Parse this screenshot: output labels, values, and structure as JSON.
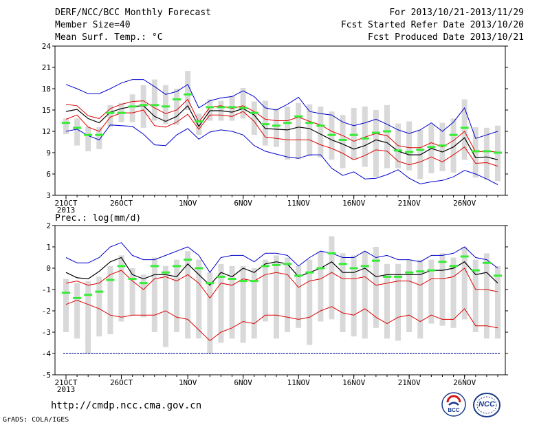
{
  "header": {
    "title": "DERF/NCC/BCC Monthly Forecast",
    "member_size": "Member Size=40",
    "variable": "Mean Surf. Temp.: °C",
    "period": "For 2013/10/21-2013/11/29",
    "fcst_started": "Fcst Started Refer Date 2013/10/20",
    "fcst_produced": "Fcst Produced Date 2013/10/21"
  },
  "footer": {
    "url": "http://cmdp.ncc.cma.gov.cn",
    "grads_credit": "GrADS: COLA/IGES",
    "logo_bcc_text": "BCC",
    "logo_ncc_text": "NCC"
  },
  "colors": {
    "box": "#d9d9d9",
    "mean_marker": "#33ee33",
    "ensemble_mean": "#000000",
    "inner_bounds": "#dd0000",
    "outer_bounds": "#0000cc"
  },
  "chart_data": [
    {
      "type": "line",
      "title": "Mean Surf. Temp.: °C",
      "x_tick_labels": [
        "21OCT",
        "26OCT",
        "1NOV",
        "6NOV",
        "11NOV",
        "16NOV",
        "21NOV",
        "26NOV"
      ],
      "x_tick_index": [
        0,
        5,
        11,
        16,
        21,
        26,
        31,
        36
      ],
      "x_year_label": "2013",
      "ylim": [
        3,
        24
      ],
      "yticks": [
        3,
        6,
        9,
        12,
        15,
        18,
        21,
        24
      ],
      "series": [
        {
          "role": "blue-upper",
          "values": [
            18.6,
            18.0,
            17.3,
            17.3,
            18.0,
            18.8,
            19.3,
            19.3,
            18.3,
            17.2,
            17.6,
            18.6,
            15.3,
            16.3,
            16.7,
            16.9,
            17.7,
            16.9,
            15.3,
            15.0,
            15.8,
            16.8,
            14.8,
            14.5,
            14.3,
            13.3,
            12.8,
            13.2,
            13.7,
            13.0,
            12.2,
            11.7,
            12.2,
            13.2,
            12.0,
            13.3,
            15.3,
            11.0,
            11.5,
            12.0
          ]
        },
        {
          "role": "red-upper",
          "values": [
            15.8,
            15.6,
            14.2,
            13.8,
            15.2,
            15.8,
            16.2,
            16.3,
            15.3,
            14.5,
            15.0,
            16.5,
            13.3,
            15.4,
            15.6,
            15.2,
            15.6,
            14.8,
            13.7,
            13.5,
            13.5,
            14.0,
            13.4,
            12.9,
            12.0,
            11.4,
            10.6,
            11.2,
            11.7,
            11.4,
            10.0,
            9.7,
            9.7,
            10.4,
            9.8,
            10.7,
            12.0,
            9.1,
            9.2,
            9.1
          ]
        },
        {
          "role": "black-mean",
          "values": [
            14.8,
            15.1,
            13.8,
            13.2,
            14.7,
            15.2,
            15.5,
            15.6,
            14.1,
            13.4,
            14.1,
            15.6,
            12.7,
            14.9,
            14.9,
            14.7,
            15.2,
            14.3,
            12.4,
            12.3,
            12.2,
            12.6,
            12.4,
            11.6,
            10.8,
            10.2,
            9.5,
            10.0,
            10.8,
            10.4,
            9.2,
            8.7,
            8.7,
            9.6,
            9.1,
            9.8,
            11.1,
            8.3,
            8.4,
            8.0
          ]
        },
        {
          "role": "red-lower",
          "values": [
            13.7,
            14.3,
            12.6,
            12.0,
            14.0,
            14.6,
            14.6,
            15.0,
            12.8,
            12.6,
            13.3,
            14.4,
            12.3,
            14.3,
            14.3,
            14.1,
            14.8,
            13.4,
            11.2,
            11.0,
            10.8,
            10.8,
            10.8,
            10.1,
            9.6,
            8.9,
            8.0,
            8.6,
            9.4,
            9.2,
            7.8,
            7.3,
            7.7,
            8.4,
            7.7,
            8.7,
            9.8,
            7.5,
            7.6,
            7.1
          ]
        },
        {
          "role": "blue-lower",
          "values": [
            12.0,
            12.3,
            11.4,
            10.8,
            12.9,
            12.8,
            12.7,
            11.6,
            10.1,
            10.0,
            11.5,
            12.4,
            10.9,
            11.9,
            12.2,
            12.0,
            11.5,
            10.0,
            9.2,
            8.8,
            8.4,
            8.2,
            8.7,
            8.7,
            6.8,
            5.8,
            6.3,
            5.3,
            5.4,
            5.9,
            6.6,
            5.4,
            4.6,
            4.9,
            5.1,
            5.6,
            6.5,
            6.0,
            5.3,
            4.5
          ]
        },
        {
          "role": "green-marker",
          "values": [
            13.2,
            12.5,
            11.5,
            11.5,
            14.6,
            14.6,
            15.5,
            15.7,
            15.7,
            15.5,
            16.5,
            17.2,
            13.4,
            15.4,
            15.4,
            15.4,
            15.3,
            14.6,
            13.0,
            12.8,
            13.2,
            14.1,
            13.2,
            12.8,
            11.5,
            10.8,
            11.5,
            11.0,
            11.8,
            12.0,
            9.3,
            9.1,
            9.4,
            9.8,
            10.0,
            11.5,
            12.5,
            9.2,
            9.2,
            9.0
          ]
        },
        {
          "role": "box-top",
          "values": [
            13.8,
            13.8,
            12.6,
            12.6,
            15.7,
            16.0,
            17.2,
            18.5,
            19.3,
            18.5,
            18.0,
            20.5,
            14.5,
            16.5,
            16.3,
            17.0,
            18.1,
            16.2,
            16.3,
            15.2,
            15.5,
            16.0,
            15.8,
            15.5,
            14.8,
            14.3,
            15.3,
            15.5,
            15.0,
            15.7,
            13.1,
            13.4,
            12.2,
            13.0,
            13.2,
            13.8,
            16.5,
            12.6,
            12.5,
            12.8
          ]
        },
        {
          "role": "box-bottom",
          "values": [
            11.6,
            10.0,
            9.2,
            9.5,
            12.6,
            13.3,
            13.3,
            12.5,
            13.5,
            13.0,
            12.9,
            15.0,
            11.5,
            13.5,
            13.5,
            13.5,
            13.8,
            11.5,
            10.0,
            9.8,
            8.0,
            8.1,
            8.5,
            8.3,
            8.0,
            6.8,
            8.0,
            7.0,
            5.6,
            6.8,
            6.8,
            6.5,
            5.3,
            6.1,
            6.4,
            6.2,
            8.0,
            5.5,
            5.2,
            5.0
          ]
        }
      ]
    },
    {
      "type": "line",
      "title": "Prec.: log(mm/d)",
      "x_tick_labels": [
        "21OCT",
        "26OCT",
        "1NOV",
        "6NOV",
        "11NOV",
        "16NOV",
        "21NOV",
        "26NOV"
      ],
      "x_tick_index": [
        0,
        5,
        11,
        16,
        21,
        26,
        31,
        36
      ],
      "x_year_label": "2013",
      "ylim": [
        -5,
        2
      ],
      "yticks": [
        -5,
        -4,
        -3,
        -2,
        -1,
        0,
        1,
        2
      ],
      "series": [
        {
          "role": "blue-upper",
          "values": [
            0.5,
            0.25,
            0.25,
            0.5,
            1.0,
            1.2,
            0.6,
            0.4,
            0.4,
            0.6,
            0.8,
            1.0,
            0.6,
            -0.2,
            0.5,
            0.6,
            0.6,
            0.3,
            0.7,
            0.7,
            0.6,
            0.1,
            0.5,
            0.8,
            0.7,
            0.5,
            0.5,
            0.8,
            0.5,
            0.6,
            0.4,
            0.4,
            0.3,
            0.6,
            0.6,
            0.7,
            1.0,
            0.5,
            0.4,
            0.0
          ]
        },
        {
          "role": "black-mean",
          "values": [
            -0.2,
            -0.45,
            -0.5,
            -0.15,
            0.3,
            0.5,
            -0.3,
            -0.5,
            -0.3,
            -0.3,
            -0.4,
            0.2,
            -0.3,
            -0.8,
            -0.2,
            -0.4,
            0.0,
            -0.2,
            0.2,
            0.3,
            0.2,
            -0.4,
            -0.2,
            0.0,
            0.3,
            -0.2,
            -0.2,
            0.0,
            -0.4,
            -0.3,
            -0.3,
            -0.3,
            -0.3,
            -0.1,
            -0.1,
            0.0,
            0.3,
            -0.3,
            -0.2,
            -0.7
          ]
        },
        {
          "role": "red-upper",
          "values": [
            -0.7,
            -0.6,
            -0.8,
            -0.7,
            -0.3,
            -0.1,
            -0.6,
            -1.0,
            -0.5,
            -0.4,
            -0.6,
            -0.3,
            -0.7,
            -1.4,
            -0.7,
            -0.8,
            -0.5,
            -0.6,
            -0.3,
            -0.2,
            -0.3,
            -0.9,
            -0.6,
            -0.5,
            -0.2,
            -0.5,
            -0.5,
            -0.4,
            -0.8,
            -0.7,
            -0.6,
            -0.6,
            -0.8,
            -0.5,
            -0.5,
            -0.4,
            0.0,
            -1.0,
            -1.0,
            -1.1
          ]
        },
        {
          "role": "red-lower",
          "values": [
            -1.7,
            -1.5,
            -1.7,
            -1.9,
            -2.2,
            -2.3,
            -2.2,
            -2.2,
            -2.2,
            -2.0,
            -2.3,
            -2.4,
            -2.9,
            -3.4,
            -3.0,
            -2.8,
            -2.5,
            -2.6,
            -2.2,
            -2.2,
            -2.3,
            -2.4,
            -2.3,
            -2.0,
            -1.8,
            -2.1,
            -2.2,
            -1.9,
            -2.3,
            -2.6,
            -2.3,
            -2.2,
            -2.5,
            -2.2,
            -2.4,
            -2.4,
            -1.9,
            -2.7,
            -2.7,
            -2.8
          ]
        },
        {
          "role": "green-marker",
          "values": [
            -1.15,
            -1.4,
            -1.25,
            -1.1,
            -0.55,
            0.1,
            -0.5,
            -0.7,
            0.1,
            -0.2,
            0.1,
            0.4,
            0.0,
            -0.7,
            -0.4,
            -0.5,
            -0.6,
            -0.6,
            0.1,
            0.15,
            0.2,
            -0.35,
            -0.2,
            0.0,
            0.7,
            0.2,
            0.0,
            0.1,
            0.35,
            -0.4,
            -0.4,
            -0.2,
            -0.15,
            -0.1,
            0.3,
            0.1,
            0.55,
            -0.1,
            0.25,
            -0.35
          ]
        },
        {
          "role": "box-top",
          "values": [
            -0.5,
            -0.7,
            -0.6,
            -0.4,
            0.1,
            0.6,
            0.0,
            -0.3,
            0.5,
            0.1,
            0.4,
            0.8,
            0.4,
            -0.2,
            0.2,
            0.1,
            0.1,
            0.0,
            0.4,
            0.6,
            0.5,
            0.1,
            0.4,
            0.8,
            1.5,
            0.7,
            0.6,
            0.8,
            1.0,
            0.2,
            0.2,
            0.4,
            0.4,
            0.4,
            0.7,
            0.5,
            1.0,
            0.4,
            0.7,
            0.1
          ]
        },
        {
          "role": "box-bottom",
          "values": [
            -3.0,
            -3.3,
            -4.0,
            -3.2,
            -3.1,
            -2.5,
            -2.2,
            -2.3,
            -3.0,
            -3.7,
            -3.0,
            -3.3,
            -3.3,
            -4.0,
            -3.5,
            -3.3,
            -3.5,
            -3.3,
            -2.5,
            -3.3,
            -3.0,
            -2.8,
            -3.6,
            -2.5,
            -2.4,
            -3.0,
            -3.2,
            -3.3,
            -2.8,
            -3.3,
            -3.4,
            -3.0,
            -3.3,
            -2.6,
            -2.7,
            -2.8,
            -2.4,
            -3.0,
            -3.3,
            -3.3
          ]
        },
        {
          "role": "floor-line",
          "values": [
            -4,
            -4,
            -4,
            -4,
            -4,
            -4,
            -4,
            -4,
            -4,
            -4,
            -4,
            -4,
            -4,
            -4,
            -4,
            -4,
            -4,
            -4,
            -4,
            -4,
            -4,
            -4,
            -4,
            -4,
            -4,
            -4,
            -4,
            -4,
            -4,
            -4,
            -4,
            -4,
            -4,
            -4,
            -4,
            -4,
            -4,
            -4,
            -4,
            -4
          ]
        }
      ]
    }
  ]
}
